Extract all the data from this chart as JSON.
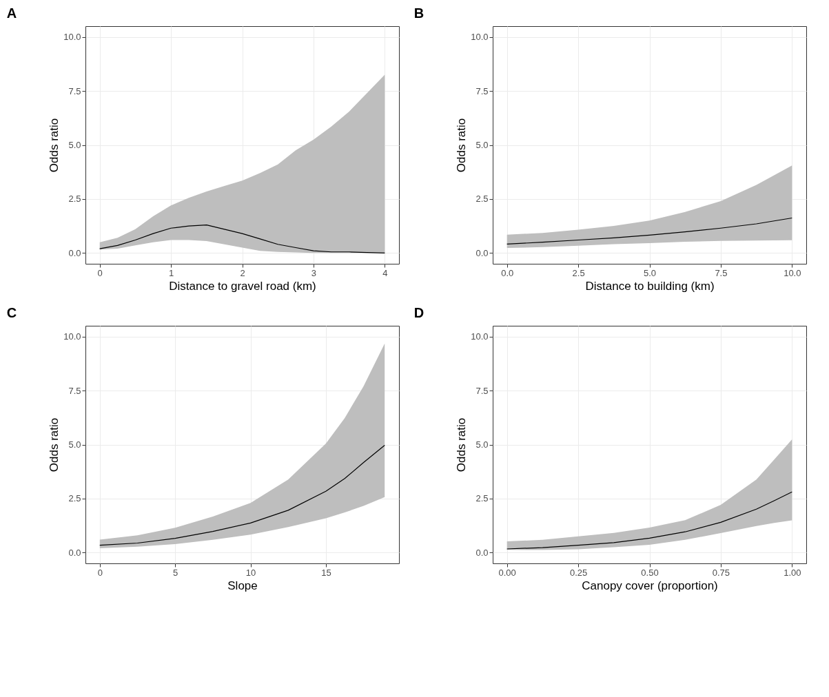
{
  "chart_data": [
    {
      "type": "line",
      "title": "A",
      "xlabel": "Distance to gravel road (km)",
      "ylabel": "Odds ratio",
      "grid": true,
      "xlim": [
        -0.2,
        4.2
      ],
      "xticks": [
        0,
        1,
        2,
        3,
        4
      ],
      "ylim": [
        -0.5,
        10.5
      ],
      "yticks": [
        {
          "value": 0,
          "label": "0.0"
        },
        {
          "value": 2.5,
          "label": "2.5"
        },
        {
          "value": 5,
          "label": "5.0"
        },
        {
          "value": 7.5,
          "label": "7.5"
        },
        {
          "value": 10,
          "label": "10.0"
        }
      ],
      "x": [
        0,
        0.25,
        0.5,
        0.75,
        1,
        1.25,
        1.5,
        1.75,
        2,
        2.25,
        2.5,
        2.75,
        3,
        3.25,
        3.5,
        3.75,
        4
      ],
      "series": [
        {
          "color": "#000000",
          "values": [
            0.2,
            0.35,
            0.6,
            0.9,
            1.15,
            1.25,
            1.3,
            1.1,
            0.9,
            0.65,
            0.4,
            0.25,
            0.1,
            0.05,
            0.05,
            0.02,
            0
          ],
          "lower": [
            0.15,
            0.2,
            0.35,
            0.5,
            0.6,
            0.6,
            0.55,
            0.4,
            0.25,
            0.1,
            0.05,
            0.03,
            0,
            0,
            0,
            0,
            0
          ],
          "upper": [
            0.5,
            0.7,
            1.1,
            1.7,
            2.2,
            2.55,
            2.85,
            3.1,
            3.35,
            3.7,
            4.1,
            4.75,
            5.25,
            5.85,
            6.55,
            7.4,
            8.25
          ]
        }
      ]
    },
    {
      "type": "line",
      "title": "B",
      "xlabel": "Distance to building (km)",
      "ylabel": "Odds ratio",
      "grid": true,
      "xlim": [
        -0.5,
        10.5
      ],
      "xticks": [
        {
          "value": 0,
          "label": "0.0"
        },
        {
          "value": 2.5,
          "label": "2.5"
        },
        {
          "value": 5,
          "label": "5.0"
        },
        {
          "value": 7.5,
          "label": "7.5"
        },
        {
          "value": 10,
          "label": "10.0"
        }
      ],
      "ylim": [
        -0.5,
        10.5
      ],
      "yticks": [
        {
          "value": 0,
          "label": "0.0"
        },
        {
          "value": 2.5,
          "label": "2.5"
        },
        {
          "value": 5,
          "label": "5.0"
        },
        {
          "value": 7.5,
          "label": "7.5"
        },
        {
          "value": 10,
          "label": "10.0"
        }
      ],
      "x": [
        0,
        1.25,
        2.5,
        3.75,
        5,
        6.25,
        7.5,
        8.75,
        10
      ],
      "series": [
        {
          "color": "#000000",
          "values": [
            0.41,
            0.5,
            0.6,
            0.7,
            0.83,
            0.98,
            1.15,
            1.35,
            1.62
          ],
          "lower": [
            0.23,
            0.27,
            0.34,
            0.41,
            0.46,
            0.52,
            0.56,
            0.58,
            0.59
          ],
          "upper": [
            0.85,
            0.93,
            1.08,
            1.25,
            1.5,
            1.9,
            2.4,
            3.15,
            4.05
          ]
        }
      ]
    },
    {
      "type": "line",
      "title": "C",
      "xlabel": "Slope",
      "ylabel": "Odds ratio",
      "grid": true,
      "xlim": [
        -0.95,
        19.85
      ],
      "xticks": [
        0,
        5,
        10,
        15
      ],
      "ylim": [
        -0.5,
        10.5
      ],
      "yticks": [
        {
          "value": 0,
          "label": "0.0"
        },
        {
          "value": 2.5,
          "label": "2.5"
        },
        {
          "value": 5,
          "label": "5.0"
        },
        {
          "value": 7.5,
          "label": "7.5"
        },
        {
          "value": 10,
          "label": "10.0"
        }
      ],
      "x": [
        0,
        2.5,
        5,
        7.5,
        10,
        12.5,
        15,
        16.25,
        17.5,
        18.9
      ],
      "series": [
        {
          "color": "#000000",
          "values": [
            0.34,
            0.44,
            0.66,
            0.98,
            1.37,
            1.96,
            2.84,
            3.43,
            4.17,
            4.97
          ],
          "lower": [
            0.2,
            0.27,
            0.39,
            0.59,
            0.83,
            1.18,
            1.59,
            1.86,
            2.16,
            2.57
          ],
          "upper": [
            0.6,
            0.8,
            1.15,
            1.67,
            2.3,
            3.38,
            5.05,
            6.23,
            7.7,
            9.68
          ]
        }
      ]
    },
    {
      "type": "line",
      "title": "D",
      "xlabel": "Canopy cover (proportion)",
      "ylabel": "Odds ratio",
      "grid": true,
      "xlim": [
        -0.05,
        1.05
      ],
      "xticks": [
        {
          "value": 0,
          "label": "0.00"
        },
        {
          "value": 0.25,
          "label": "0.25"
        },
        {
          "value": 0.5,
          "label": "0.50"
        },
        {
          "value": 0.75,
          "label": "0.75"
        },
        {
          "value": 1,
          "label": "1.00"
        }
      ],
      "ylim": [
        -0.5,
        10.5
      ],
      "yticks": [
        {
          "value": 0,
          "label": "0.0"
        },
        {
          "value": 2.5,
          "label": "2.5"
        },
        {
          "value": 5,
          "label": "5.0"
        },
        {
          "value": 7.5,
          "label": "7.5"
        },
        {
          "value": 10,
          "label": "10.0"
        }
      ],
      "x": [
        0,
        0.125,
        0.25,
        0.375,
        0.5,
        0.625,
        0.75,
        0.875,
        0.9375,
        1
      ],
      "series": [
        {
          "color": "#000000",
          "values": [
            0.17,
            0.23,
            0.34,
            0.46,
            0.67,
            0.96,
            1.4,
            2.01,
            2.4,
            2.81
          ],
          "lower": [
            0.13,
            0.12,
            0.15,
            0.25,
            0.36,
            0.59,
            0.9,
            1.23,
            1.37,
            1.49
          ],
          "upper": [
            0.52,
            0.59,
            0.75,
            0.91,
            1.16,
            1.5,
            2.21,
            3.38,
            4.31,
            5.24
          ]
        }
      ]
    }
  ]
}
